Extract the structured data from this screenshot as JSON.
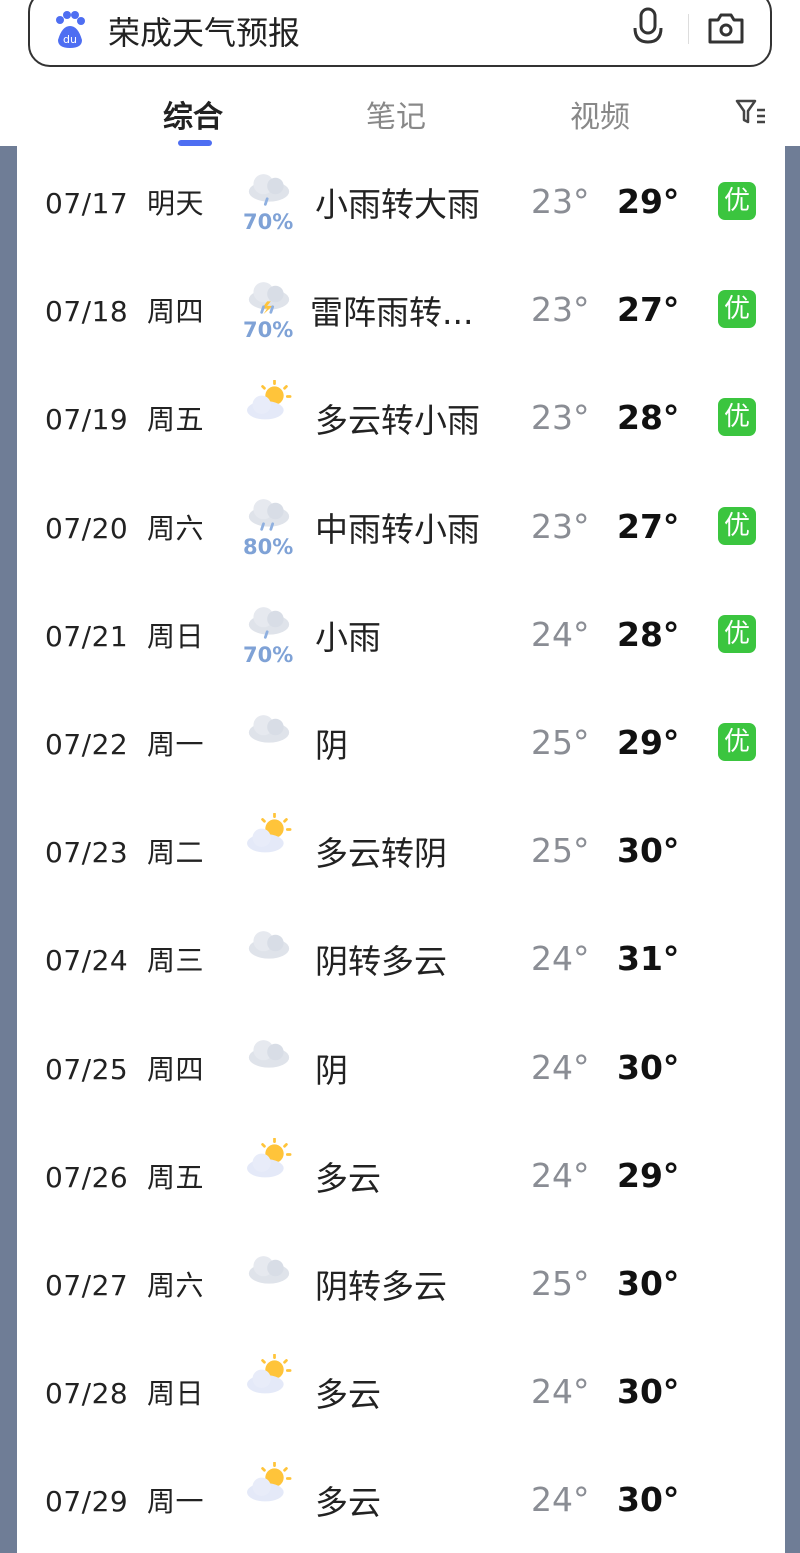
{
  "search": {
    "query": "荣成天气预报",
    "logo_icon": "baidu-paw-icon",
    "mic_icon": "microphone-icon",
    "camera_icon": "camera-icon"
  },
  "tabs": [
    {
      "label": "综合",
      "active": true
    },
    {
      "label": "笔记"
    },
    {
      "label": "视频"
    }
  ],
  "filter_icon": "filter-icon",
  "colors": {
    "accent": "#4e6ef2",
    "air_quality_good": "#3bc53f",
    "precip": "#7fa2d6"
  },
  "forecast": [
    {
      "date": "07/17",
      "day": "明天",
      "icon": "light-rain",
      "precip": "70%",
      "desc": "小雨转大雨",
      "low": "23°",
      "high": "29°",
      "aq": "优"
    },
    {
      "date": "07/18",
      "day": "周四",
      "icon": "thunderstorm",
      "precip": "70%",
      "desc": "雷阵雨转...",
      "low": "23°",
      "high": "27°",
      "aq": "优"
    },
    {
      "date": "07/19",
      "day": "周五",
      "icon": "partly-cloudy",
      "precip": "",
      "desc": "多云转小雨",
      "low": "23°",
      "high": "28°",
      "aq": "优"
    },
    {
      "date": "07/20",
      "day": "周六",
      "icon": "moderate-rain",
      "precip": "80%",
      "desc": "中雨转小雨",
      "low": "23°",
      "high": "27°",
      "aq": "优"
    },
    {
      "date": "07/21",
      "day": "周日",
      "icon": "light-rain",
      "precip": "70%",
      "desc": "小雨",
      "low": "24°",
      "high": "28°",
      "aq": "优"
    },
    {
      "date": "07/22",
      "day": "周一",
      "icon": "overcast",
      "precip": "",
      "desc": "阴",
      "low": "25°",
      "high": "29°",
      "aq": "优"
    },
    {
      "date": "07/23",
      "day": "周二",
      "icon": "partly-cloudy",
      "precip": "",
      "desc": "多云转阴",
      "low": "25°",
      "high": "30°",
      "aq": ""
    },
    {
      "date": "07/24",
      "day": "周三",
      "icon": "overcast",
      "precip": "",
      "desc": "阴转多云",
      "low": "24°",
      "high": "31°",
      "aq": ""
    },
    {
      "date": "07/25",
      "day": "周四",
      "icon": "overcast",
      "precip": "",
      "desc": "阴",
      "low": "24°",
      "high": "30°",
      "aq": ""
    },
    {
      "date": "07/26",
      "day": "周五",
      "icon": "partly-cloudy",
      "precip": "",
      "desc": "多云",
      "low": "24°",
      "high": "29°",
      "aq": ""
    },
    {
      "date": "07/27",
      "day": "周六",
      "icon": "overcast",
      "precip": "",
      "desc": "阴转多云",
      "low": "25°",
      "high": "30°",
      "aq": ""
    },
    {
      "date": "07/28",
      "day": "周日",
      "icon": "partly-cloudy",
      "precip": "",
      "desc": "多云",
      "low": "24°",
      "high": "30°",
      "aq": ""
    },
    {
      "date": "07/29",
      "day": "周一",
      "icon": "partly-cloudy",
      "precip": "",
      "desc": "多云",
      "low": "24°",
      "high": "30°",
      "aq": ""
    }
  ]
}
